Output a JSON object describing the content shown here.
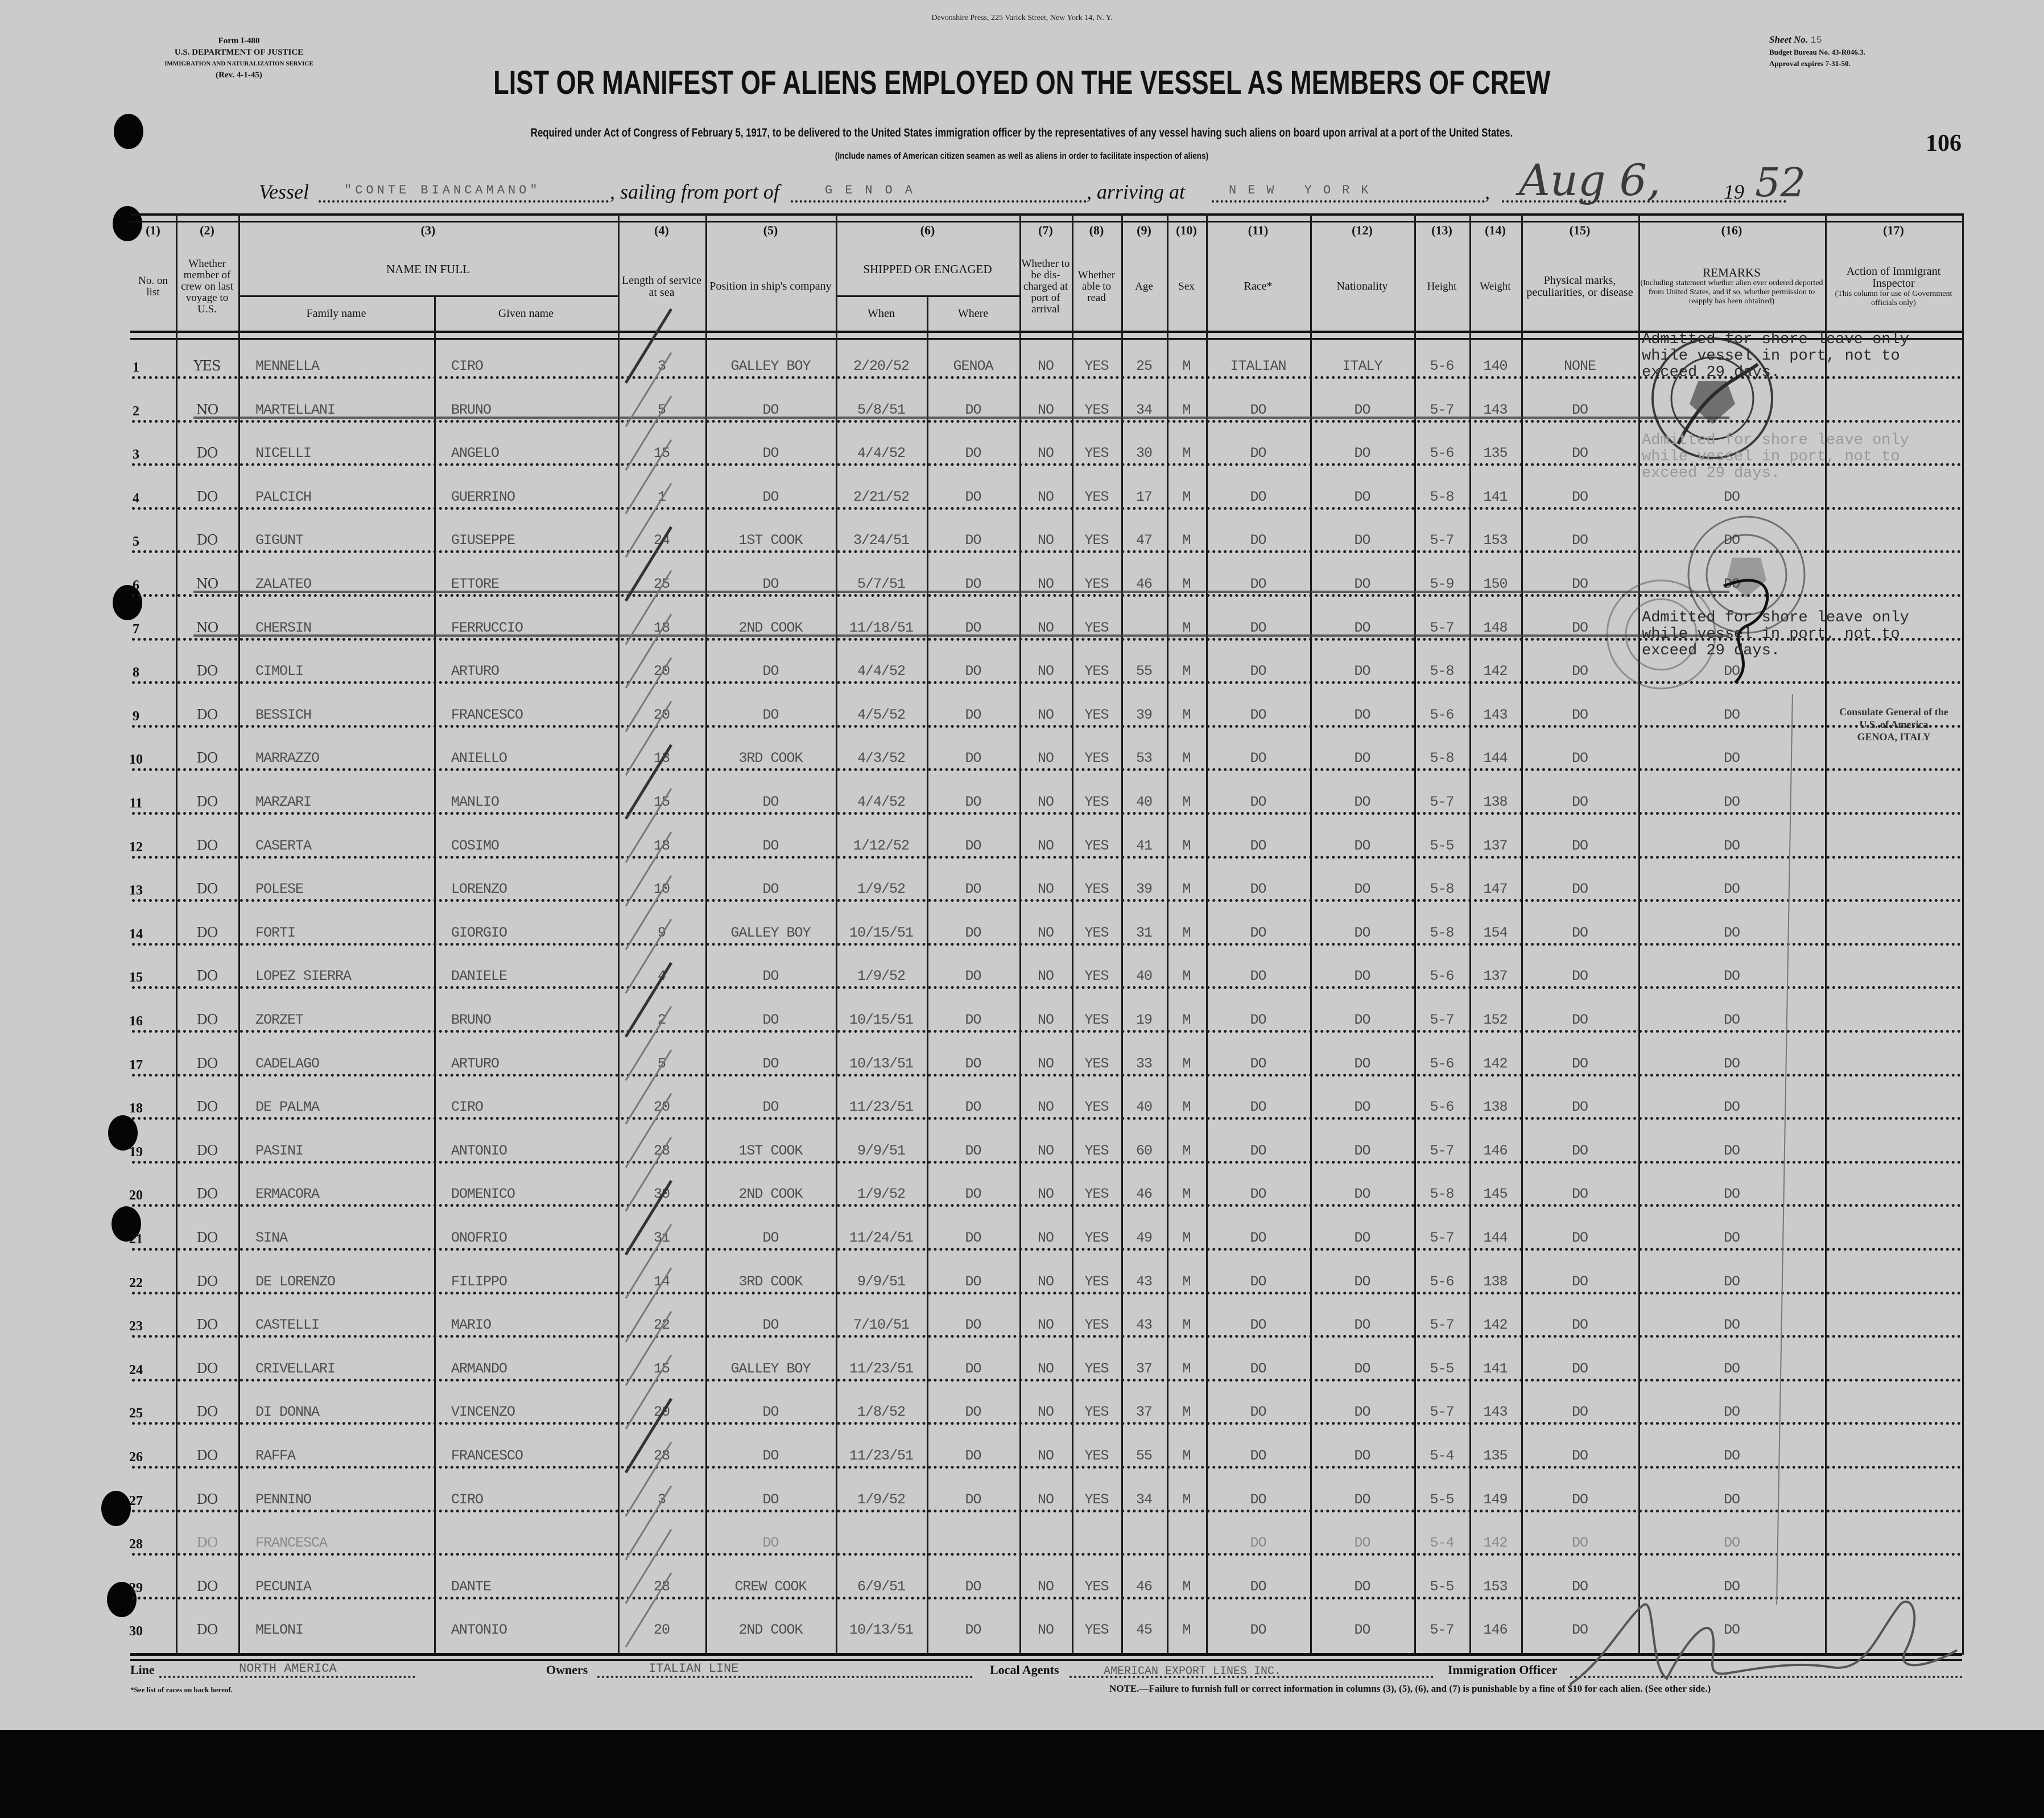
{
  "form": {
    "form_no": "Form I-480",
    "department": "U.S. DEPARTMENT OF JUSTICE",
    "service": "IMMIGRATION AND NATURALIZATION SERVICE",
    "revision": "(Rev. 4-1-45)",
    "printer": "Devonshire Press, 225 Varick Street, New York 14, N. Y.",
    "title": "LIST OR MANIFEST OF ALIENS EMPLOYED ON THE VESSEL AS MEMBERS OF CREW",
    "subtitle": "Required under Act of Congress of February 5, 1917, to be delivered to the United States immigration officer by the representatives of any vessel having such aliens on board upon arrival at a port of the United States.",
    "instruction": "(Include names of American citizen seamen as well as aliens in order to facilitate inspection of aliens)",
    "sheet_label": "Sheet No.",
    "sheet_no": "15",
    "budget": "Budget Bureau No. 43-R046.3.",
    "approval": "Approval expires 7-31-50.",
    "page_number": "106"
  },
  "voyage": {
    "vessel_label": "Vessel",
    "vessel": "\"CONTE BIANCAMANO\"",
    "sailing_label": ", sailing from port of",
    "port_from": "GENOA",
    "arriving_label": ", arriving at",
    "port_to": "NEW YORK",
    "date_hand": "Aug 6,",
    "date_year_prefix": "19",
    "date_year_hand": "52"
  },
  "header": {
    "columns": [
      {
        "num": "(1)",
        "label": "No. on list"
      },
      {
        "num": "(2)",
        "label": "Whether member of crew on last voyage to U.S."
      },
      {
        "num": "(3)",
        "label": "NAME IN FULL",
        "sub": [
          "Family name",
          "Given name"
        ]
      },
      {
        "num": "(4)",
        "label": "Length of service at sea"
      },
      {
        "num": "(5)",
        "label": "Position in ship's company"
      },
      {
        "num": "(6)",
        "label": "SHIPPED OR ENGAGED",
        "sub": [
          "When",
          "Where"
        ]
      },
      {
        "num": "(7)",
        "label": "Whether to be dis-charged at port of arrival"
      },
      {
        "num": "(8)",
        "label": "Whether able to read"
      },
      {
        "num": "(9)",
        "label": "Age"
      },
      {
        "num": "(10)",
        "label": "Sex"
      },
      {
        "num": "(11)",
        "label": "Race*"
      },
      {
        "num": "(12)",
        "label": "Nationality"
      },
      {
        "num": "(13)",
        "label": "Height"
      },
      {
        "num": "(14)",
        "label": "Weight"
      },
      {
        "num": "(15)",
        "label": "Physical marks, peculiarities, or disease"
      },
      {
        "num": "(16)",
        "label": "REMARKS",
        "note": "(Including statement whether alien ever ordered deported from United States, and if so, whether permission to reapply has been obtained)"
      },
      {
        "num": "(17)",
        "label": "Action of Immigrant Inspector",
        "note": "(This column for use of Government officials only)"
      }
    ]
  },
  "rows": [
    {
      "no": "1",
      "crew": "YES",
      "family": "MENNELLA",
      "given": "CIRO",
      "length": "3",
      "position": "GALLEY BOY",
      "when": "2/20/52",
      "where": "GENOA",
      "discharged": "NO",
      "read": "YES",
      "age": "25",
      "sex": "M",
      "race": "ITALIAN",
      "nationality": "ITALY",
      "height": "5-6",
      "weight": "140",
      "marks": "NONE",
      "remarks": "",
      "struck": false
    },
    {
      "no": "2",
      "crew": "NO",
      "family": "MARTELLANI",
      "given": "BRUNO",
      "length": "5",
      "position": "DO",
      "when": "5/8/51",
      "where": "DO",
      "discharged": "NO",
      "read": "YES",
      "age": "34",
      "sex": "M",
      "race": "DO",
      "nationality": "DO",
      "height": "5-7",
      "weight": "143",
      "marks": "DO",
      "remarks": "",
      "struck": true
    },
    {
      "no": "3",
      "crew": "DO",
      "family": "NICELLI",
      "given": "ANGELO",
      "length": "15",
      "position": "DO",
      "when": "4/4/52",
      "where": "DO",
      "discharged": "NO",
      "read": "YES",
      "age": "30",
      "sex": "M",
      "race": "DO",
      "nationality": "DO",
      "height": "5-6",
      "weight": "135",
      "marks": "DO",
      "remarks": "",
      "struck": false
    },
    {
      "no": "4",
      "crew": "DO",
      "family": "PALCICH",
      "given": "GUERRINO",
      "length": "1",
      "position": "DO",
      "when": "2/21/52",
      "where": "DO",
      "discharged": "NO",
      "read": "YES",
      "age": "17",
      "sex": "M",
      "race": "DO",
      "nationality": "DO",
      "height": "5-8",
      "weight": "141",
      "marks": "DO",
      "remarks": "DO",
      "struck": false
    },
    {
      "no": "5",
      "crew": "DO",
      "family": "GIGUNT",
      "given": "GIUSEPPE",
      "length": "24",
      "position": "1ST COOK",
      "when": "3/24/51",
      "where": "DO",
      "discharged": "NO",
      "read": "YES",
      "age": "47",
      "sex": "M",
      "race": "DO",
      "nationality": "DO",
      "height": "5-7",
      "weight": "153",
      "marks": "DO",
      "remarks": "DO",
      "struck": false
    },
    {
      "no": "6",
      "crew": "NO",
      "family": "ZALATEO",
      "given": "ETTORE",
      "length": "25",
      "position": "DO",
      "when": "5/7/51",
      "where": "DO",
      "discharged": "NO",
      "read": "YES",
      "age": "46",
      "sex": "M",
      "race": "DO",
      "nationality": "DO",
      "height": "5-9",
      "weight": "150",
      "marks": "DO",
      "remarks": "DO",
      "struck": true
    },
    {
      "no": "7",
      "crew": "NO",
      "family": "CHERSIN",
      "given": "FERRUCCIO",
      "length": "18",
      "position": "2ND COOK",
      "when": "11/18/51",
      "where": "DO",
      "discharged": "NO",
      "read": "YES",
      "age": "",
      "sex": "M",
      "race": "DO",
      "nationality": "DO",
      "height": "5-7",
      "weight": "148",
      "marks": "DO",
      "remarks": "",
      "struck": true
    },
    {
      "no": "8",
      "crew": "DO",
      "family": "CIMOLI",
      "given": "ARTURO",
      "length": "20",
      "position": "DO",
      "when": "4/4/52",
      "where": "DO",
      "discharged": "NO",
      "read": "YES",
      "age": "55",
      "sex": "M",
      "race": "DO",
      "nationality": "DO",
      "height": "5-8",
      "weight": "142",
      "marks": "DO",
      "remarks": "DO",
      "struck": false
    },
    {
      "no": "9",
      "crew": "DO",
      "family": "BESSICH",
      "given": "FRANCESCO",
      "length": "20",
      "position": "DO",
      "when": "4/5/52",
      "where": "DO",
      "discharged": "NO",
      "read": "YES",
      "age": "39",
      "sex": "M",
      "race": "DO",
      "nationality": "DO",
      "height": "5-6",
      "weight": "143",
      "marks": "DO",
      "remarks": "DO",
      "struck": false
    },
    {
      "no": "10",
      "crew": "DO",
      "family": "MARRAZZO",
      "given": "ANIELLO",
      "length": "13",
      "position": "3RD COOK",
      "when": "4/3/52",
      "where": "DO",
      "discharged": "NO",
      "read": "YES",
      "age": "53",
      "sex": "M",
      "race": "DO",
      "nationality": "DO",
      "height": "5-8",
      "weight": "144",
      "marks": "DO",
      "remarks": "DO",
      "struck": false
    },
    {
      "no": "11",
      "crew": "DO",
      "family": "MARZARI",
      "given": "MANLIO",
      "length": "15",
      "position": "DO",
      "when": "4/4/52",
      "where": "DO",
      "discharged": "NO",
      "read": "YES",
      "age": "40",
      "sex": "M",
      "race": "DO",
      "nationality": "DO",
      "height": "5-7",
      "weight": "138",
      "marks": "DO",
      "remarks": "DO",
      "struck": false
    },
    {
      "no": "12",
      "crew": "DO",
      "family": "CASERTA",
      "given": "COSIMO",
      "length": "18",
      "position": "DO",
      "when": "1/12/52",
      "where": "DO",
      "discharged": "NO",
      "read": "YES",
      "age": "41",
      "sex": "M",
      "race": "DO",
      "nationality": "DO",
      "height": "5-5",
      "weight": "137",
      "marks": "DO",
      "remarks": "DO",
      "struck": false
    },
    {
      "no": "13",
      "crew": "DO",
      "family": "POLESE",
      "given": "LORENZO",
      "length": "10",
      "position": "DO",
      "when": "1/9/52",
      "where": "DO",
      "discharged": "NO",
      "read": "YES",
      "age": "39",
      "sex": "M",
      "race": "DO",
      "nationality": "DO",
      "height": "5-8",
      "weight": "147",
      "marks": "DO",
      "remarks": "DO",
      "struck": false
    },
    {
      "no": "14",
      "crew": "DO",
      "family": "FORTI",
      "given": "GIORGIO",
      "length": "9",
      "position": "GALLEY BOY",
      "when": "10/15/51",
      "where": "DO",
      "discharged": "NO",
      "read": "YES",
      "age": "31",
      "sex": "M",
      "race": "DO",
      "nationality": "DO",
      "height": "5-8",
      "weight": "154",
      "marks": "DO",
      "remarks": "DO",
      "struck": false
    },
    {
      "no": "15",
      "crew": "DO",
      "family": "LOPEZ SIERRA",
      "given": "DANIELE",
      "length": "4",
      "position": "DO",
      "when": "1/9/52",
      "where": "DO",
      "discharged": "NO",
      "read": "YES",
      "age": "40",
      "sex": "M",
      "race": "DO",
      "nationality": "DO",
      "height": "5-6",
      "weight": "137",
      "marks": "DO",
      "remarks": "DO",
      "struck": false
    },
    {
      "no": "16",
      "crew": "DO",
      "family": "ZORZET",
      "given": "BRUNO",
      "length": "2",
      "position": "DO",
      "when": "10/15/51",
      "where": "DO",
      "discharged": "NO",
      "read": "YES",
      "age": "19",
      "sex": "M",
      "race": "DO",
      "nationality": "DO",
      "height": "5-7",
      "weight": "152",
      "marks": "DO",
      "remarks": "DO",
      "struck": false
    },
    {
      "no": "17",
      "crew": "DO",
      "family": "CADELAGO",
      "given": "ARTURO",
      "length": "5",
      "position": "DO",
      "when": "10/13/51",
      "where": "DO",
      "discharged": "NO",
      "read": "YES",
      "age": "33",
      "sex": "M",
      "race": "DO",
      "nationality": "DO",
      "height": "5-6",
      "weight": "142",
      "marks": "DO",
      "remarks": "DO",
      "struck": false
    },
    {
      "no": "18",
      "crew": "DO",
      "family": "DE PALMA",
      "given": "CIRO",
      "length": "20",
      "position": "DO",
      "when": "11/23/51",
      "where": "DO",
      "discharged": "NO",
      "read": "YES",
      "age": "40",
      "sex": "M",
      "race": "DO",
      "nationality": "DO",
      "height": "5-6",
      "weight": "138",
      "marks": "DO",
      "remarks": "DO",
      "struck": false
    },
    {
      "no": "19",
      "crew": "DO",
      "family": "PASINI",
      "given": "ANTONIO",
      "length": "28",
      "position": "1ST COOK",
      "when": "9/9/51",
      "where": "DO",
      "discharged": "NO",
      "read": "YES",
      "age": "60",
      "sex": "M",
      "race": "DO",
      "nationality": "DO",
      "height": "5-7",
      "weight": "146",
      "marks": "DO",
      "remarks": "DO",
      "struck": false
    },
    {
      "no": "20",
      "crew": "DO",
      "family": "ERMACORA",
      "given": "DOMENICO",
      "length": "30",
      "position": "2ND COOK",
      "when": "1/9/52",
      "where": "DO",
      "discharged": "NO",
      "read": "YES",
      "age": "46",
      "sex": "M",
      "race": "DO",
      "nationality": "DO",
      "height": "5-8",
      "weight": "145",
      "marks": "DO",
      "remarks": "DO",
      "struck": false
    },
    {
      "no": "21",
      "crew": "DO",
      "family": "SINA",
      "given": "ONOFRIO",
      "length": "31",
      "position": "DO",
      "when": "11/24/51",
      "where": "DO",
      "discharged": "NO",
      "read": "YES",
      "age": "49",
      "sex": "M",
      "race": "DO",
      "nationality": "DO",
      "height": "5-7",
      "weight": "144",
      "marks": "DO",
      "remarks": "DO",
      "struck": false
    },
    {
      "no": "22",
      "crew": "DO",
      "family": "DE LORENZO",
      "given": "FILIPPO",
      "length": "14",
      "position": "3RD COOK",
      "when": "9/9/51",
      "where": "DO",
      "discharged": "NO",
      "read": "YES",
      "age": "43",
      "sex": "M",
      "race": "DO",
      "nationality": "DO",
      "height": "5-6",
      "weight": "138",
      "marks": "DO",
      "remarks": "DO",
      "struck": false
    },
    {
      "no": "23",
      "crew": "DO",
      "family": "CASTELLI",
      "given": "MARIO",
      "length": "22",
      "position": "DO",
      "when": "7/10/51",
      "where": "DO",
      "discharged": "NO",
      "read": "YES",
      "age": "43",
      "sex": "M",
      "race": "DO",
      "nationality": "DO",
      "height": "5-7",
      "weight": "142",
      "marks": "DO",
      "remarks": "DO",
      "struck": false
    },
    {
      "no": "24",
      "crew": "DO",
      "family": "CRIVELLARI",
      "given": "ARMANDO",
      "length": "15",
      "position": "GALLEY BOY",
      "when": "11/23/51",
      "where": "DO",
      "discharged": "NO",
      "read": "YES",
      "age": "37",
      "sex": "M",
      "race": "DO",
      "nationality": "DO",
      "height": "5-5",
      "weight": "141",
      "marks": "DO",
      "remarks": "DO",
      "struck": false
    },
    {
      "no": "25",
      "crew": "DO",
      "family": "DI DONNA",
      "given": "VINCENZO",
      "length": "20",
      "position": "DO",
      "when": "1/8/52",
      "where": "DO",
      "discharged": "NO",
      "read": "YES",
      "age": "37",
      "sex": "M",
      "race": "DO",
      "nationality": "DO",
      "height": "5-7",
      "weight": "143",
      "marks": "DO",
      "remarks": "DO",
      "struck": false
    },
    {
      "no": "26",
      "crew": "DO",
      "family": "RAFFA",
      "given": "FRANCESCO",
      "length": "28",
      "position": "DO",
      "when": "11/23/51",
      "where": "DO",
      "discharged": "NO",
      "read": "YES",
      "age": "55",
      "sex": "M",
      "race": "DO",
      "nationality": "DO",
      "height": "5-4",
      "weight": "135",
      "marks": "DO",
      "remarks": "DO",
      "struck": false
    },
    {
      "no": "27",
      "crew": "DO",
      "family": "PENNINO",
      "given": "CIRO",
      "length": "3",
      "position": "DO",
      "when": "1/9/52",
      "where": "DO",
      "discharged": "NO",
      "read": "YES",
      "age": "34",
      "sex": "M",
      "race": "DO",
      "nationality": "DO",
      "height": "5-5",
      "weight": "149",
      "marks": "DO",
      "remarks": "DO",
      "struck": false
    },
    {
      "no": "28",
      "crew": "DO",
      "family": "FRANCESCA",
      "given": "",
      "length": "",
      "position": "DO",
      "when": "",
      "where": "",
      "discharged": "",
      "read": "",
      "age": "",
      "sex": "",
      "race": "DO",
      "nationality": "DO",
      "height": "5-4",
      "weight": "142",
      "marks": "DO",
      "remarks": "DO",
      "struck": false,
      "faint": true
    },
    {
      "no": "29",
      "crew": "DO",
      "family": "PECUNIA",
      "given": "DANTE",
      "length": "28",
      "position": "CREW COOK",
      "when": "6/9/51",
      "where": "DO",
      "discharged": "NO",
      "read": "YES",
      "age": "46",
      "sex": "M",
      "race": "DO",
      "nationality": "DO",
      "height": "5-5",
      "weight": "153",
      "marks": "DO",
      "remarks": "DO",
      "struck": false
    },
    {
      "no": "30",
      "crew": "DO",
      "family": "MELONI",
      "given": "ANTONIO",
      "length": "20",
      "position": "2ND COOK",
      "when": "10/13/51",
      "where": "DO",
      "discharged": "NO",
      "read": "YES",
      "age": "45",
      "sex": "M",
      "race": "DO",
      "nationality": "DO",
      "height": "5-7",
      "weight": "146",
      "marks": "DO",
      "remarks": "DO",
      "struck": false
    }
  ],
  "annotations": {
    "shore_leave_1": "Admitted for shore leave only\nwhile vessel in port, not to\nexceed 29 days.",
    "shore_leave_2": "Admitted for shore leave only\nwhile vessel in port, not to\nexceed 29 days.",
    "shore_leave_3": "Admitted for shore leave only\nwhile vessel in port, not to\nexceed 29 days.",
    "stamp_ring": "Consulate General of the U.S. of America",
    "stamp_city": "GENOA, ITALY"
  },
  "footer": {
    "line_label": "Line",
    "line_value": "NORTH AMERICA",
    "owners_label": "Owners",
    "owners_value": "ITALIAN LINE",
    "agents_label": "Local Agents",
    "agents_value": "AMERICAN EXPORT LINES INC.",
    "officer_label": "Immigration Officer",
    "races_note": "*See list of races on back hereof.",
    "penalty_note": "NOTE.—Failure to furnish full or correct information in columns (3), (5), (6), and (7) is punishable by a fine of $10 for each alien.  (See other side.)"
  }
}
